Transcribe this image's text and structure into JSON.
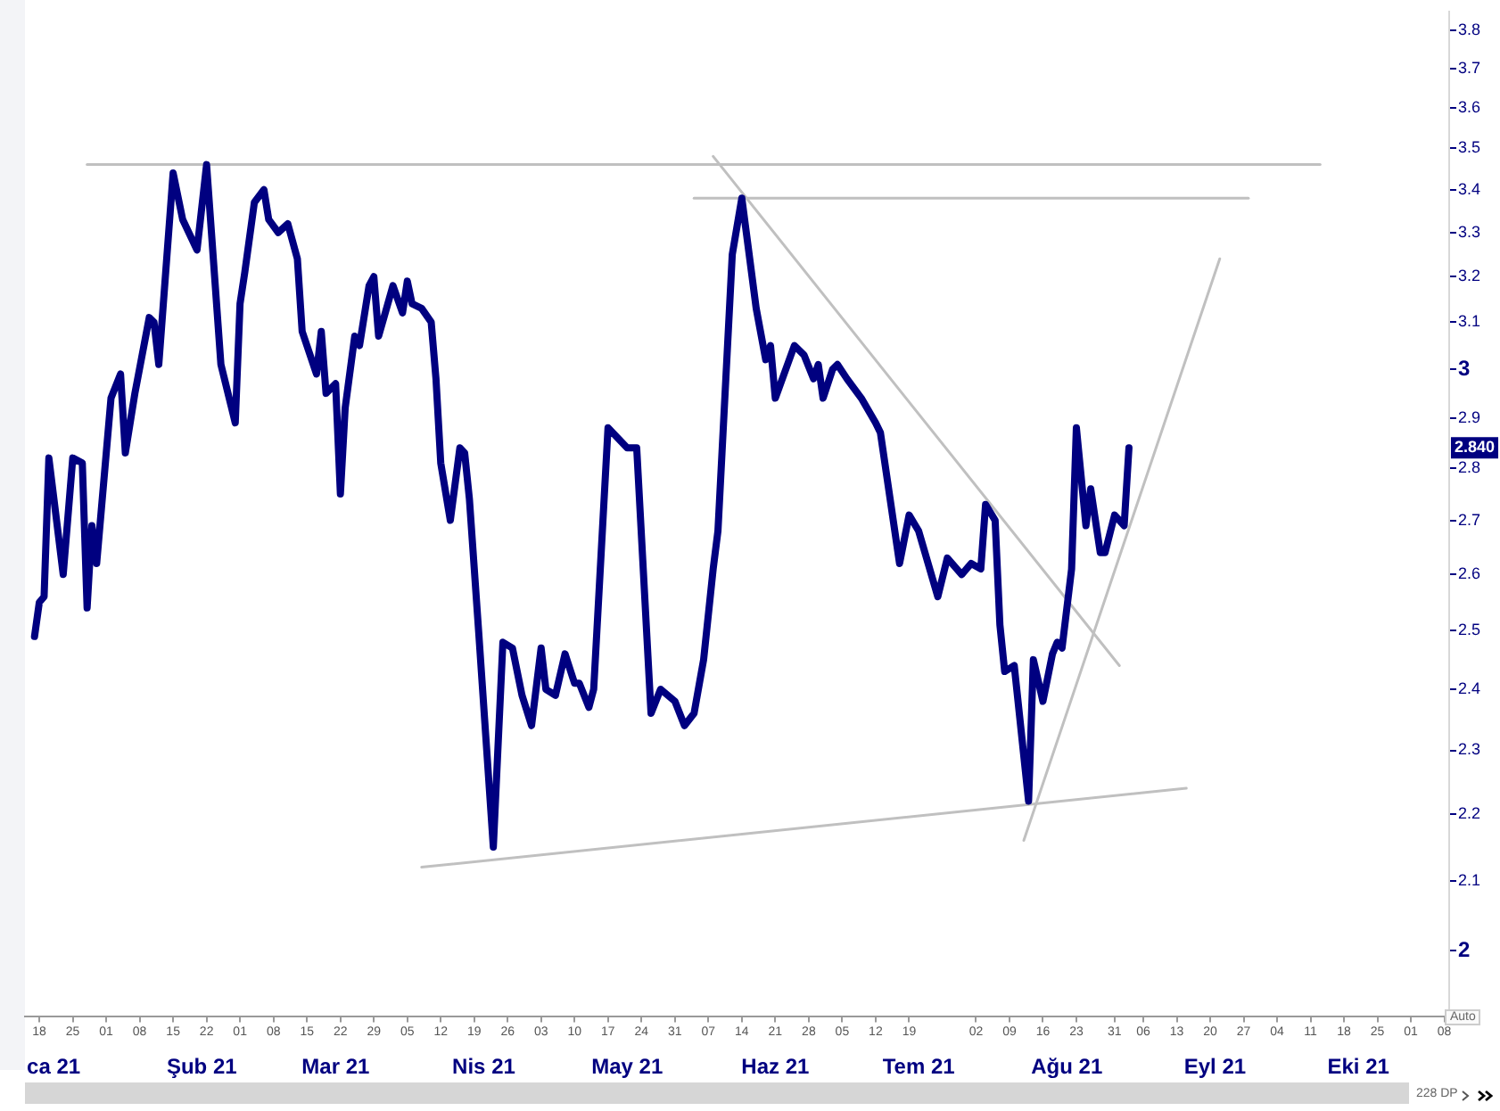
{
  "chart_data": {
    "type": "line",
    "log": "y",
    "marker": "none",
    "legend": false,
    "x": [
      "--01-17",
      "--01-18",
      "--01-19",
      "--01-20",
      "--01-23",
      "--01-25",
      "--01-27",
      "--01-28",
      "--01-29",
      "--01-30",
      "--02-02",
      "--02-04",
      "--02-05",
      "--02-07",
      "--02-10",
      "--02-11",
      "--02-12",
      "--02-15",
      "--02-17",
      "--02-20",
      "--02-22",
      "--02-25",
      "--02-28",
      "--03-01",
      "--03-02",
      "--03-04",
      "--03-06",
      "--03-07",
      "--03-09",
      "--03-11",
      "--03-13",
      "--03-14",
      "--03-17",
      "--03-18",
      "--03-19",
      "--03-21",
      "--03-22",
      "--03-23",
      "--03-25",
      "--03-26",
      "--03-28",
      "--03-29",
      "--03-30",
      "--04-02",
      "--04-04",
      "--04-05",
      "--04-06",
      "--04-08",
      "--04-10",
      "--04-11",
      "--04-12",
      "--04-14",
      "--04-16",
      "--04-17",
      "--04-18",
      "--04-20",
      "--04-23",
      "--04-25",
      "--04-27",
      "--04-29",
      "--05-01",
      "--05-03",
      "--05-04",
      "--05-06",
      "--05-08",
      "--05-10",
      "--05-11",
      "--05-13",
      "--05-14",
      "--05-17",
      "--05-21",
      "--05-23",
      "--05-26",
      "--05-28",
      "--05-31",
      "--06-02",
      "--06-04",
      "--06-06",
      "--06-08",
      "--06-09",
      "--06-12",
      "--06-14",
      "--06-17",
      "--06-19",
      "--06-20",
      "--06-21",
      "--06-25",
      "--06-27",
      "--06-29",
      "--06-30",
      "--07-01",
      "--07-03",
      "--07-04",
      "--07-06",
      "--07-09",
      "--07-12",
      "--07-13",
      "--07-17",
      "--07-19",
      "--07-21",
      "--07-25",
      "--07-27",
      "--07-30",
      "--08-01",
      "--08-03",
      "--08-04",
      "--08-06",
      "--08-07",
      "--08-08",
      "--08-10",
      "--08-13",
      "--08-14",
      "--08-16",
      "--08-18",
      "--08-19",
      "--08-20",
      "--08-22",
      "--08-23",
      "--08-25",
      "--08-26",
      "--08-28",
      "--08-29",
      "--08-31",
      "--09-02",
      "--09-03"
    ],
    "series": [
      {
        "color": "#000080",
        "values": [
          2.49,
          2.55,
          2.56,
          2.82,
          2.6,
          2.82,
          2.81,
          2.54,
          2.69,
          2.62,
          2.94,
          2.99,
          2.83,
          2.95,
          3.11,
          3.1,
          3.01,
          3.44,
          3.33,
          3.26,
          3.46,
          3.01,
          2.89,
          3.14,
          3.21,
          3.37,
          3.4,
          3.33,
          3.3,
          3.32,
          3.24,
          3.08,
          2.99,
          3.08,
          2.95,
          2.97,
          2.75,
          2.92,
          3.07,
          3.05,
          3.18,
          3.2,
          3.07,
          3.18,
          3.12,
          3.19,
          3.14,
          3.13,
          3.1,
          2.98,
          2.81,
          2.7,
          2.84,
          2.83,
          2.74,
          2.49,
          2.15,
          2.48,
          2.47,
          2.39,
          2.34,
          2.47,
          2.4,
          2.39,
          2.46,
          2.41,
          2.41,
          2.37,
          2.4,
          2.88,
          2.84,
          2.84,
          2.36,
          2.4,
          2.38,
          2.34,
          2.36,
          2.45,
          2.61,
          2.68,
          3.25,
          3.38,
          3.13,
          3.02,
          3.05,
          2.94,
          3.05,
          3.03,
          2.98,
          3.01,
          2.94,
          3.0,
          3.01,
          2.98,
          2.94,
          2.89,
          2.87,
          2.62,
          2.71,
          2.68,
          2.56,
          2.63,
          2.6,
          2.62,
          2.61,
          2.73,
          2.7,
          2.51,
          2.43,
          2.44,
          2.22,
          2.45,
          2.38,
          2.46,
          2.48,
          2.47,
          2.61,
          2.88,
          2.69,
          2.76,
          2.64,
          2.64,
          2.71,
          2.69,
          2.84
        ]
      },
      {
        "type": "line",
        "color": "#c0c0c0",
        "x": [
          "--01-28",
          "--10-13"
        ],
        "values": [
          3.46,
          3.46
        ]
      },
      {
        "type": "line",
        "color": "#c0c0c0",
        "x": [
          "--06-04",
          "--09-28"
        ],
        "values": [
          3.38,
          3.38
        ]
      },
      {
        "type": "line",
        "color": "#c0c0c0",
        "x": [
          "--06-08",
          "--09-01"
        ],
        "values": [
          3.48,
          2.44
        ]
      },
      {
        "type": "line",
        "color": "#c0c0c0",
        "x": [
          "--08-12",
          "--09-22"
        ],
        "values": [
          2.16,
          3.24
        ]
      },
      {
        "type": "line",
        "color": "#c0c0c0",
        "x": [
          "--04-08",
          "--09-15"
        ],
        "values": [
          2.12,
          2.24
        ]
      }
    ],
    "xlim": [
      "--01-15",
      "--11-09"
    ],
    "xticks": [
      {
        "value": "--01-18",
        "label": "18"
      },
      {
        "value": "--01-25",
        "label": "25"
      },
      {
        "value": "--02-01",
        "label": "01"
      },
      {
        "value": "--02-08",
        "label": "08"
      },
      {
        "value": "--02-15",
        "label": "15"
      },
      {
        "value": "--02-22",
        "label": "22"
      },
      {
        "value": "--03-01",
        "label": "01"
      },
      {
        "value": "--03-08",
        "label": "08"
      },
      {
        "value": "--03-15",
        "label": "15"
      },
      {
        "value": "--03-22",
        "label": "22"
      },
      {
        "value": "--03-29",
        "label": "29"
      },
      {
        "value": "--04-05",
        "label": "05"
      },
      {
        "value": "--04-12",
        "label": "12"
      },
      {
        "value": "--04-19",
        "label": "19"
      },
      {
        "value": "--04-26",
        "label": "26"
      },
      {
        "value": "--05-03",
        "label": "03"
      },
      {
        "value": "--05-10",
        "label": "10"
      },
      {
        "value": "--05-17",
        "label": "17"
      },
      {
        "value": "--05-24",
        "label": "24"
      },
      {
        "value": "--05-31",
        "label": "31"
      },
      {
        "value": "--06-07",
        "label": "07"
      },
      {
        "value": "--06-14",
        "label": "14"
      },
      {
        "value": "--06-21",
        "label": "21"
      },
      {
        "value": "--06-28",
        "label": "28"
      },
      {
        "value": "--07-05",
        "label": "05"
      },
      {
        "value": "--07-12",
        "label": "12"
      },
      {
        "value": "--07-19",
        "label": "19"
      },
      {
        "value": "--08-02",
        "label": "02"
      },
      {
        "value": "--08-09",
        "label": "09"
      },
      {
        "value": "--08-16",
        "label": "16"
      },
      {
        "value": "--08-23",
        "label": "23"
      },
      {
        "value": "--08-31",
        "label": "31"
      },
      {
        "value": "--09-06",
        "label": "06"
      },
      {
        "value": "--09-13",
        "label": "13"
      },
      {
        "value": "--09-20",
        "label": "20"
      },
      {
        "value": "--09-27",
        "label": "27"
      },
      {
        "value": "--10-04",
        "label": "04"
      },
      {
        "value": "--10-11",
        "label": "11"
      },
      {
        "value": "--10-18",
        "label": "18"
      },
      {
        "value": "--10-25",
        "label": "25"
      },
      {
        "value": "--11-01",
        "label": "01"
      },
      {
        "value": "--11-08",
        "label": "08"
      }
    ],
    "x2lim": [
      "--01-15",
      "--11-09"
    ],
    "x2ticks": [
      {
        "value": "--01-21",
        "label": "ca 21"
      },
      {
        "value": "--02-21",
        "label": "Şub 21"
      },
      {
        "value": "--03-21",
        "label": "Mar 21"
      },
      {
        "value": "--04-21",
        "label": "Nis 21"
      },
      {
        "value": "--05-21",
        "label": "May 21"
      },
      {
        "value": "--06-21",
        "label": "Haz 21"
      },
      {
        "value": "--07-21",
        "label": "Tem 21"
      },
      {
        "value": "--08-21",
        "label": "Ağu 21"
      },
      {
        "value": "--09-21",
        "label": "Eyl 21"
      },
      {
        "value": "--10-21",
        "label": "Eki 21"
      }
    ],
    "ylim": [
      1.91,
      3.85
    ],
    "yticks": [
      2,
      2.1,
      2.2,
      2.3,
      2.4,
      2.5,
      2.6,
      2.7,
      2.8,
      2.9,
      3,
      3.1,
      3.2,
      3.3,
      3.4,
      3.5,
      3.6,
      3.7,
      3.8
    ],
    "annotations": [
      "2.840",
      "Auto",
      "228 DP"
    ]
  }
}
